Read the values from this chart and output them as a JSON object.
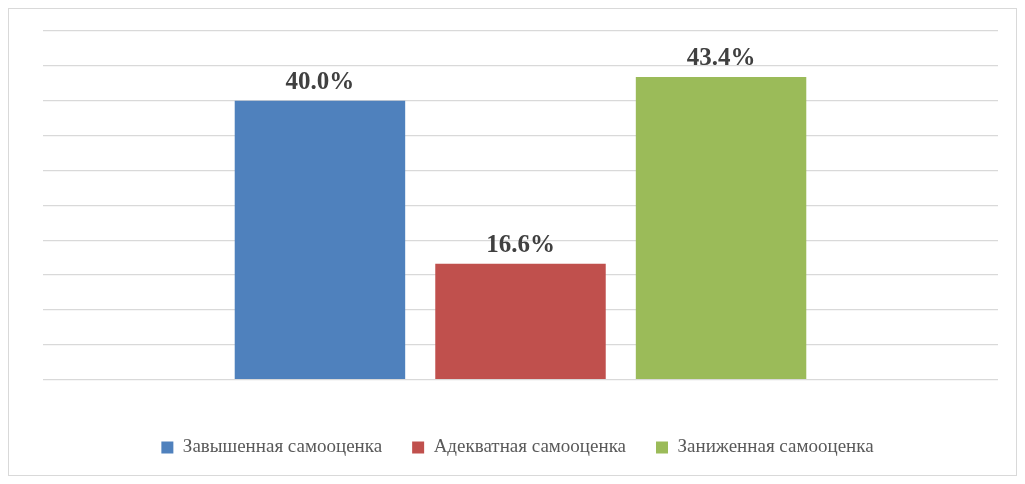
{
  "chart_data": {
    "type": "bar",
    "categories": [
      null
    ],
    "series": [
      {
        "name": "Завышенная самооценка",
        "color": "#4f81bd",
        "values": [
          40.0
        ],
        "value_labels": [
          "40.0%"
        ]
      },
      {
        "name": "Адекватная самооценка",
        "color": "#c0504d",
        "values": [
          16.6
        ],
        "value_labels": [
          "16.6%"
        ]
      },
      {
        "name": "Заниженная самооценка",
        "color": "#9bbb59",
        "values": [
          43.4
        ],
        "value_labels": [
          "43.4%"
        ]
      }
    ],
    "ylim": [
      0,
      50
    ],
    "yticks": [
      {
        "value": 0,
        "label": null
      },
      {
        "value": 5,
        "label": null
      },
      {
        "value": 10,
        "label": null
      },
      {
        "value": 15,
        "label": null
      },
      {
        "value": 20,
        "label": null
      },
      {
        "value": 25,
        "label": null
      },
      {
        "value": 30,
        "label": null
      },
      {
        "value": 35,
        "label": null
      },
      {
        "value": 40,
        "label": null
      },
      {
        "value": 45,
        "label": null
      },
      {
        "value": 50,
        "label": null
      }
    ],
    "grid": "y",
    "legend": "bottom"
  }
}
